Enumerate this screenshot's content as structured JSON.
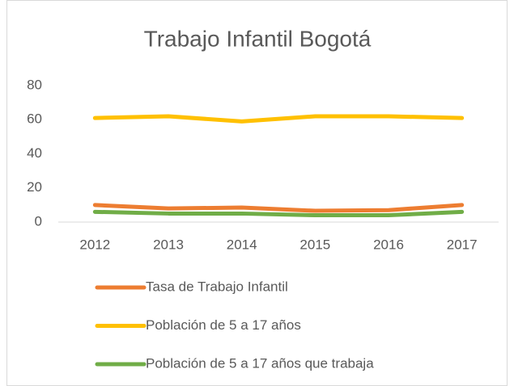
{
  "chart_data": {
    "type": "line",
    "title": "Trabajo Infantil Bogotá",
    "categories": [
      "2012",
      "2013",
      "2014",
      "2015",
      "2016",
      "2017"
    ],
    "series": [
      {
        "name": "Tasa de Trabajo Infantil",
        "color": "#ed7d31",
        "values": [
          10,
          8,
          8.5,
          6.6,
          7,
          10
        ]
      },
      {
        "name": "Población de 5 a 17 años",
        "color": "#ffc000",
        "values": [
          61,
          62,
          59,
          62,
          62,
          61
        ]
      },
      {
        "name": "Población de 5 a 17 años que trabaja",
        "color": "#70ad47",
        "values": [
          6,
          5,
          5,
          4,
          4,
          6
        ]
      }
    ],
    "ylim": [
      0,
      80
    ],
    "yticks": [
      0,
      20,
      40,
      60,
      80
    ],
    "grid": false,
    "legend": "bottom"
  }
}
